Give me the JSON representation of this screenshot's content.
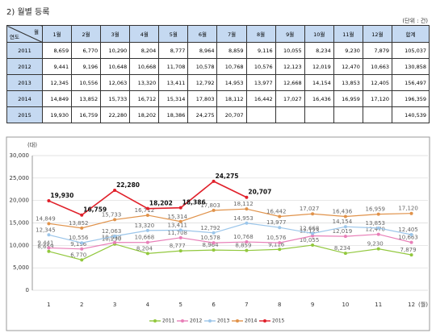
{
  "header": {
    "title": "2) 월별 등록",
    "unit": "(단위 : 건)"
  },
  "table": {
    "corner_top": "월",
    "corner_bottom": "연도",
    "columns": [
      "1월",
      "2월",
      "3월",
      "4월",
      "5월",
      "6월",
      "7월",
      "8월",
      "9월",
      "10월",
      "11월",
      "12월",
      "합계"
    ],
    "rows": [
      [
        "2011",
        "8,659",
        "6,770",
        "10,290",
        "8,204",
        "8,777",
        "8,964",
        "8,859",
        "9,116",
        "10,055",
        "8,234",
        "9,230",
        "7,879",
        "105,037"
      ],
      [
        "2012",
        "9,441",
        "9,196",
        "10,648",
        "10,668",
        "11,708",
        "10,578",
        "10,768",
        "10,576",
        "12,123",
        "12,019",
        "12,470",
        "10,663",
        "130,858"
      ],
      [
        "2013",
        "12,345",
        "10,556",
        "12,063",
        "13,320",
        "13,411",
        "12,792",
        "14,953",
        "13,977",
        "12,668",
        "14,154",
        "13,853",
        "12,405",
        "156,497"
      ],
      [
        "2014",
        "14,849",
        "13,852",
        "15,733",
        "16,712",
        "15,314",
        "17,803",
        "18,112",
        "16,442",
        "17,027",
        "16,436",
        "16,959",
        "17,120",
        "196,359"
      ],
      [
        "2015",
        "19,930",
        "16,759",
        "22,280",
        "18,202",
        "18,386",
        "24,275",
        "20,707",
        "",
        "",
        "",
        "",
        "",
        "140,539"
      ]
    ]
  },
  "chart_data": {
    "type": "line",
    "y_label": "(대)",
    "x_label": "(월)",
    "categories": [
      "1",
      "2",
      "3",
      "4",
      "5",
      "6",
      "7",
      "8",
      "9",
      "10",
      "11",
      "12"
    ],
    "ylim": [
      0,
      30000
    ],
    "yticks": [
      0,
      {
        "value": 5000,
        "label": "5,000"
      },
      {
        "value": 10000,
        "label": "10,000"
      },
      {
        "value": 15000,
        "label": "15,000"
      },
      {
        "value": 20000,
        "label": "20,000"
      },
      {
        "value": 25000,
        "label": "25,000"
      },
      {
        "value": 30000,
        "label": "30,000"
      }
    ],
    "grid": true,
    "series": [
      {
        "name": "2011",
        "color": "#92c83e",
        "values": [
          8659,
          6770,
          10290,
          8204,
          8777,
          8964,
          8859,
          9116,
          10055,
          8234,
          9230,
          7879
        ],
        "value_labels": [
          "8,659",
          "6,770",
          "10,290",
          "8,204",
          "8,777",
          "8,964",
          "8,859",
          "9,116",
          "10,055",
          "8,234",
          "9,230",
          "7,879"
        ]
      },
      {
        "name": "2012",
        "color": "#e87fb8",
        "values": [
          9441,
          9196,
          10648,
          10668,
          11708,
          10578,
          10768,
          10576,
          12123,
          12019,
          12470,
          10663
        ],
        "value_labels": [
          "9,441",
          "9,196",
          "10,648",
          "10,668",
          "11,708",
          "10,578",
          "10,768",
          "10,576",
          "12,123",
          "12,019",
          "12,470",
          "10,663"
        ]
      },
      {
        "name": "2013",
        "color": "#9cc6ea",
        "values": [
          12345,
          10556,
          12063,
          13320,
          13411,
          12792,
          14953,
          13977,
          12668,
          14154,
          13853,
          12405
        ],
        "value_labels": [
          "12,345",
          "10,556",
          "12,063",
          "13,320",
          "13,411",
          "12,792",
          "14,953",
          "13,977",
          "12,668",
          "14,154",
          "13,853",
          "12,405"
        ]
      },
      {
        "name": "2014",
        "color": "#e0924a",
        "values": [
          14849,
          13852,
          15733,
          16712,
          15314,
          17803,
          18112,
          16442,
          17027,
          16436,
          16959,
          17120
        ],
        "value_labels": [
          "14,849",
          "13,852",
          "15,733",
          "16,712",
          "15,314",
          "17,803",
          "18,112",
          "16,442",
          "17,027",
          "16,436",
          "16,959",
          "17,120"
        ]
      },
      {
        "name": "2015",
        "color": "#e0202a",
        "values": [
          19930,
          16759,
          22280,
          18202,
          18386,
          24275,
          20707,
          null,
          null,
          null,
          null,
          null
        ],
        "value_labels": [
          "19,930",
          "16,759",
          "22,280",
          "18,202",
          "18,386",
          "24,275",
          "20,707",
          null,
          null,
          null,
          null,
          null
        ]
      }
    ]
  }
}
